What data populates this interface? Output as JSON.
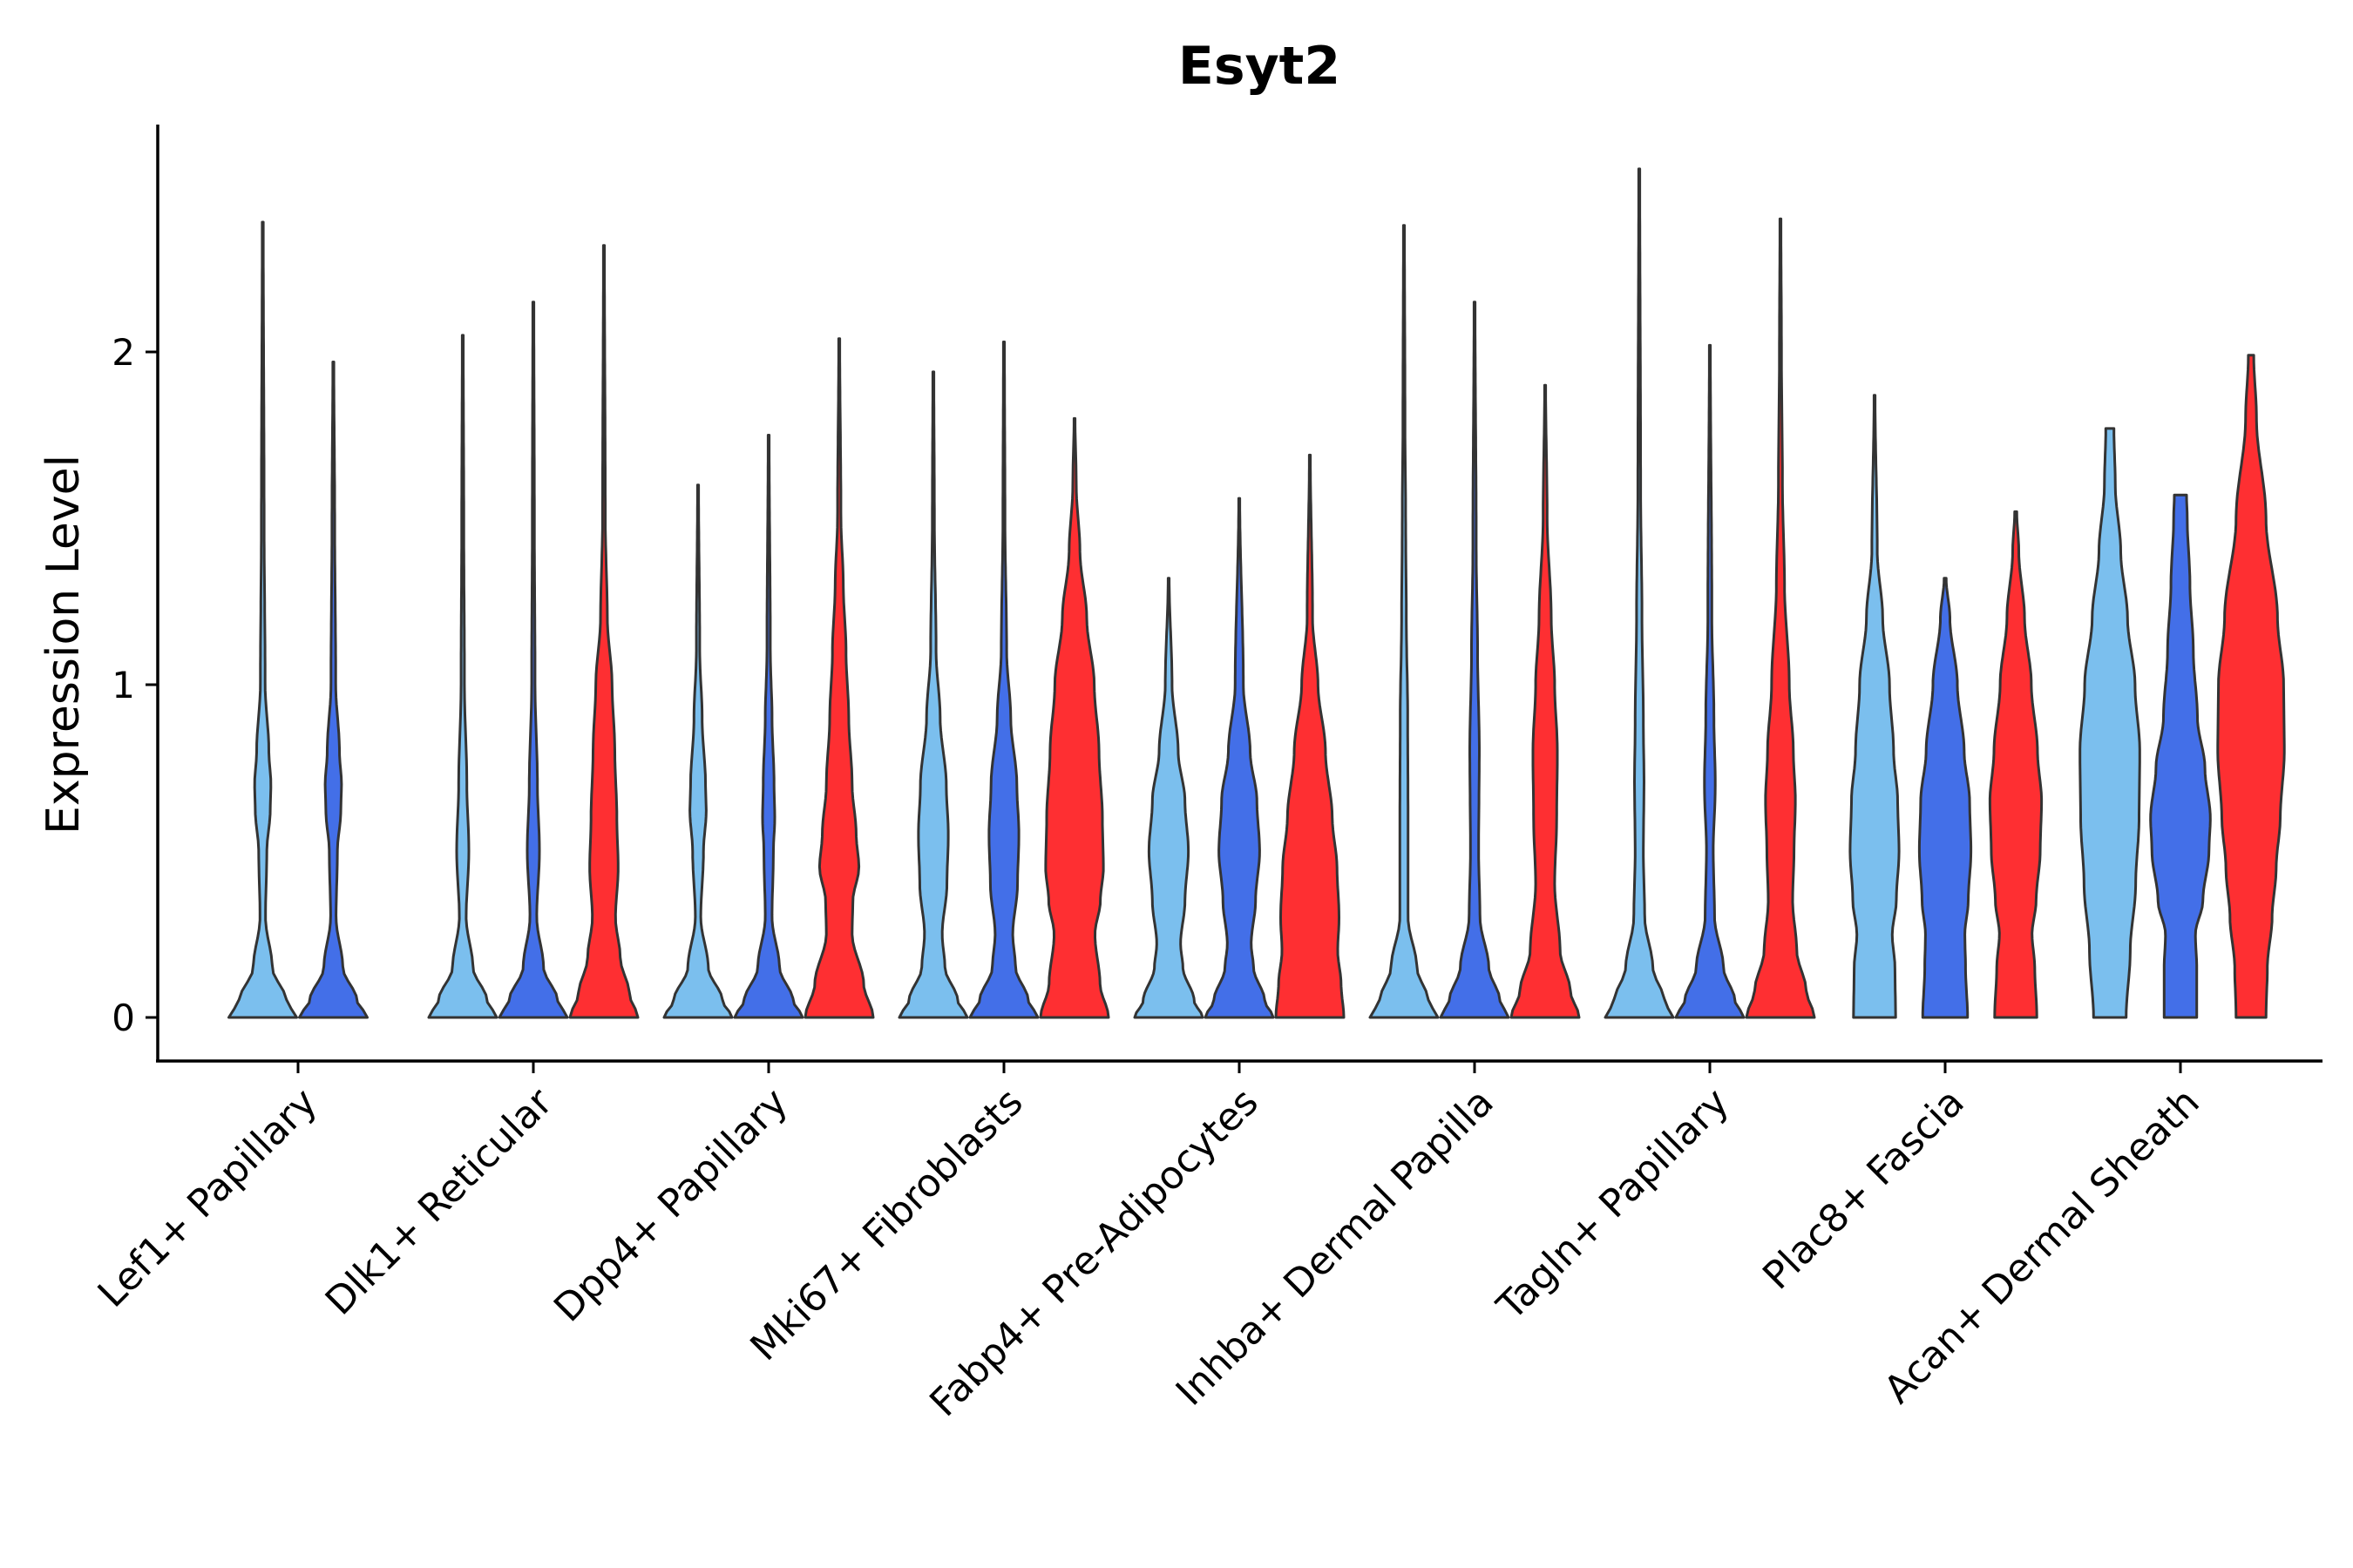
{
  "chart_data": {
    "type": "violin",
    "title": "Esyt2",
    "ylabel": "Expression Level",
    "xlabel": "",
    "ylim": [
      -0.13,
      2.7
    ],
    "yticks": [
      0,
      1,
      2
    ],
    "grid": false,
    "legend": "none",
    "categories": [
      "Lef1+ Papillary",
      "Dlk1+ Reticular",
      "Dpp4+ Papillary",
      "Mki67+ Fibroblasts",
      "Fabp4+ Pre-Adipocytes",
      "Inhba+ Dermal Papilla",
      "Tagln+ Papillary",
      "Plac8+ Fascia",
      "Acan+ Dermal Sheath"
    ],
    "groups": [
      {
        "color": "#7bbfee"
      },
      {
        "color": "#436fe8"
      },
      {
        "color": "#fe2f32"
      }
    ],
    "violins": [
      {
        "category": 0,
        "group": 0,
        "max": 2.39,
        "density": [
          [
            0,
            1.0
          ],
          [
            0.05,
            0.7
          ],
          [
            0.15,
            0.28
          ],
          [
            0.3,
            0.08
          ],
          [
            0.5,
            0.12
          ],
          [
            0.62,
            0.22
          ],
          [
            0.7,
            0.24
          ],
          [
            0.8,
            0.18
          ],
          [
            1.0,
            0.07
          ],
          [
            1.5,
            0.04
          ],
          [
            2.39,
            0.015
          ]
        ]
      },
      {
        "category": 0,
        "group": 1,
        "max": 1.97,
        "density": [
          [
            0,
            1.0
          ],
          [
            0.05,
            0.7
          ],
          [
            0.15,
            0.28
          ],
          [
            0.3,
            0.08
          ],
          [
            0.5,
            0.12
          ],
          [
            0.62,
            0.22
          ],
          [
            0.7,
            0.24
          ],
          [
            0.8,
            0.18
          ],
          [
            1.0,
            0.07
          ],
          [
            1.5,
            0.04
          ],
          [
            1.97,
            0.015
          ]
        ]
      },
      {
        "category": 1,
        "group": 0,
        "max": 2.05,
        "density": [
          [
            0,
            1.0
          ],
          [
            0.05,
            0.72
          ],
          [
            0.15,
            0.3
          ],
          [
            0.3,
            0.1
          ],
          [
            0.5,
            0.18
          ],
          [
            0.7,
            0.12
          ],
          [
            1.0,
            0.05
          ],
          [
            1.5,
            0.03
          ],
          [
            2.05,
            0.015
          ]
        ]
      },
      {
        "category": 1,
        "group": 1,
        "max": 2.15,
        "density": [
          [
            0,
            1.0
          ],
          [
            0.05,
            0.72
          ],
          [
            0.15,
            0.3
          ],
          [
            0.3,
            0.1
          ],
          [
            0.5,
            0.18
          ],
          [
            0.7,
            0.12
          ],
          [
            1.0,
            0.05
          ],
          [
            1.5,
            0.03
          ],
          [
            2.15,
            0.015
          ]
        ]
      },
      {
        "category": 1,
        "group": 2,
        "max": 2.32,
        "density": [
          [
            0,
            1.0
          ],
          [
            0.07,
            0.75
          ],
          [
            0.18,
            0.48
          ],
          [
            0.3,
            0.34
          ],
          [
            0.45,
            0.42
          ],
          [
            0.6,
            0.38
          ],
          [
            0.8,
            0.32
          ],
          [
            1.0,
            0.24
          ],
          [
            1.2,
            0.1
          ],
          [
            1.5,
            0.04
          ],
          [
            2.32,
            0.015
          ]
        ]
      },
      {
        "category": 2,
        "group": 0,
        "max": 1.6,
        "density": [
          [
            0,
            1.0
          ],
          [
            0.05,
            0.72
          ],
          [
            0.15,
            0.3
          ],
          [
            0.3,
            0.08
          ],
          [
            0.5,
            0.16
          ],
          [
            0.62,
            0.24
          ],
          [
            0.7,
            0.22
          ],
          [
            0.9,
            0.12
          ],
          [
            1.1,
            0.05
          ],
          [
            1.6,
            0.015
          ]
        ]
      },
      {
        "category": 2,
        "group": 1,
        "max": 1.75,
        "density": [
          [
            0,
            1.0
          ],
          [
            0.05,
            0.72
          ],
          [
            0.15,
            0.32
          ],
          [
            0.3,
            0.1
          ],
          [
            0.5,
            0.14
          ],
          [
            0.6,
            0.18
          ],
          [
            0.7,
            0.16
          ],
          [
            0.9,
            0.1
          ],
          [
            1.1,
            0.05
          ],
          [
            1.75,
            0.015
          ]
        ]
      },
      {
        "category": 2,
        "group": 2,
        "max": 2.04,
        "density": [
          [
            0,
            1.0
          ],
          [
            0.1,
            0.72
          ],
          [
            0.25,
            0.38
          ],
          [
            0.35,
            0.4
          ],
          [
            0.45,
            0.58
          ],
          [
            0.55,
            0.5
          ],
          [
            0.7,
            0.38
          ],
          [
            0.9,
            0.28
          ],
          [
            1.1,
            0.2
          ],
          [
            1.3,
            0.12
          ],
          [
            1.5,
            0.05
          ],
          [
            2.04,
            0.015
          ]
        ]
      },
      {
        "category": 3,
        "group": 0,
        "max": 1.94,
        "density": [
          [
            0,
            1.0
          ],
          [
            0.05,
            0.72
          ],
          [
            0.15,
            0.34
          ],
          [
            0.25,
            0.26
          ],
          [
            0.4,
            0.4
          ],
          [
            0.55,
            0.44
          ],
          [
            0.7,
            0.38
          ],
          [
            0.9,
            0.2
          ],
          [
            1.1,
            0.08
          ],
          [
            1.5,
            0.03
          ],
          [
            1.94,
            0.015
          ]
        ]
      },
      {
        "category": 3,
        "group": 1,
        "max": 2.03,
        "density": [
          [
            0,
            1.0
          ],
          [
            0.05,
            0.72
          ],
          [
            0.15,
            0.34
          ],
          [
            0.25,
            0.26
          ],
          [
            0.4,
            0.4
          ],
          [
            0.55,
            0.44
          ],
          [
            0.7,
            0.38
          ],
          [
            0.9,
            0.2
          ],
          [
            1.1,
            0.08
          ],
          [
            1.5,
            0.03
          ],
          [
            2.03,
            0.015
          ]
        ]
      },
      {
        "category": 3,
        "group": 2,
        "max": 1.8,
        "density": [
          [
            0,
            1.0
          ],
          [
            0.1,
            0.75
          ],
          [
            0.25,
            0.6
          ],
          [
            0.35,
            0.76
          ],
          [
            0.45,
            0.85
          ],
          [
            0.6,
            0.82
          ],
          [
            0.8,
            0.72
          ],
          [
            1.0,
            0.58
          ],
          [
            1.2,
            0.36
          ],
          [
            1.4,
            0.16
          ],
          [
            1.6,
            0.05
          ],
          [
            1.8,
            0.015
          ]
        ]
      },
      {
        "category": 4,
        "group": 0,
        "max": 1.32,
        "density": [
          [
            0,
            1.0
          ],
          [
            0.05,
            0.75
          ],
          [
            0.15,
            0.42
          ],
          [
            0.22,
            0.35
          ],
          [
            0.35,
            0.48
          ],
          [
            0.5,
            0.58
          ],
          [
            0.65,
            0.48
          ],
          [
            0.8,
            0.28
          ],
          [
            1.0,
            0.1
          ],
          [
            1.32,
            0.015
          ]
        ]
      },
      {
        "category": 4,
        "group": 1,
        "max": 1.56,
        "density": [
          [
            0,
            1.0
          ],
          [
            0.05,
            0.75
          ],
          [
            0.15,
            0.42
          ],
          [
            0.22,
            0.35
          ],
          [
            0.35,
            0.48
          ],
          [
            0.5,
            0.6
          ],
          [
            0.65,
            0.52
          ],
          [
            0.8,
            0.32
          ],
          [
            1.0,
            0.12
          ],
          [
            1.56,
            0.015
          ]
        ]
      },
      {
        "category": 4,
        "group": 2,
        "max": 1.69,
        "density": [
          [
            0,
            1.0
          ],
          [
            0.1,
            0.92
          ],
          [
            0.2,
            0.82
          ],
          [
            0.3,
            0.86
          ],
          [
            0.45,
            0.8
          ],
          [
            0.6,
            0.66
          ],
          [
            0.8,
            0.46
          ],
          [
            1.0,
            0.24
          ],
          [
            1.2,
            0.08
          ],
          [
            1.69,
            0.015
          ]
        ]
      },
      {
        "category": 5,
        "group": 0,
        "max": 2.38,
        "density": [
          [
            0,
            1.0
          ],
          [
            0.05,
            0.72
          ],
          [
            0.15,
            0.38
          ],
          [
            0.3,
            0.12
          ],
          [
            0.6,
            0.12
          ],
          [
            0.9,
            0.11
          ],
          [
            1.2,
            0.07
          ],
          [
            1.5,
            0.05
          ],
          [
            1.8,
            0.03
          ],
          [
            2.38,
            0.015
          ]
        ]
      },
      {
        "category": 5,
        "group": 1,
        "max": 2.15,
        "density": [
          [
            0,
            1.0
          ],
          [
            0.05,
            0.75
          ],
          [
            0.15,
            0.42
          ],
          [
            0.3,
            0.16
          ],
          [
            0.5,
            0.12
          ],
          [
            0.8,
            0.14
          ],
          [
            1.1,
            0.09
          ],
          [
            1.4,
            0.05
          ],
          [
            2.15,
            0.015
          ]
        ]
      },
      {
        "category": 5,
        "group": 2,
        "max": 1.9,
        "density": [
          [
            0,
            1.0
          ],
          [
            0.08,
            0.74
          ],
          [
            0.2,
            0.44
          ],
          [
            0.4,
            0.28
          ],
          [
            0.6,
            0.34
          ],
          [
            0.8,
            0.36
          ],
          [
            1.0,
            0.28
          ],
          [
            1.2,
            0.18
          ],
          [
            1.5,
            0.06
          ],
          [
            1.9,
            0.015
          ]
        ]
      },
      {
        "category": 6,
        "group": 0,
        "max": 2.55,
        "density": [
          [
            0,
            1.0
          ],
          [
            0.05,
            0.74
          ],
          [
            0.15,
            0.4
          ],
          [
            0.3,
            0.16
          ],
          [
            0.5,
            0.12
          ],
          [
            0.7,
            0.14
          ],
          [
            0.9,
            0.12
          ],
          [
            1.2,
            0.08
          ],
          [
            1.6,
            0.04
          ],
          [
            2.55,
            0.015
          ]
        ]
      },
      {
        "category": 6,
        "group": 1,
        "max": 2.02,
        "density": [
          [
            0,
            1.0
          ],
          [
            0.05,
            0.74
          ],
          [
            0.15,
            0.4
          ],
          [
            0.3,
            0.14
          ],
          [
            0.5,
            0.1
          ],
          [
            0.7,
            0.16
          ],
          [
            0.9,
            0.12
          ],
          [
            1.2,
            0.06
          ],
          [
            2.02,
            0.015
          ]
        ]
      },
      {
        "category": 6,
        "group": 2,
        "max": 2.4,
        "density": [
          [
            0,
            1.0
          ],
          [
            0.08,
            0.76
          ],
          [
            0.2,
            0.48
          ],
          [
            0.35,
            0.36
          ],
          [
            0.5,
            0.4
          ],
          [
            0.65,
            0.44
          ],
          [
            0.8,
            0.38
          ],
          [
            1.0,
            0.26
          ],
          [
            1.3,
            0.12
          ],
          [
            1.6,
            0.06
          ],
          [
            2.0,
            0.03
          ],
          [
            2.4,
            0.015
          ]
        ]
      },
      {
        "category": 7,
        "group": 0,
        "max": 1.87,
        "density": [
          [
            0,
            0.62
          ],
          [
            0.15,
            0.6
          ],
          [
            0.25,
            0.52
          ],
          [
            0.35,
            0.64
          ],
          [
            0.5,
            0.72
          ],
          [
            0.65,
            0.68
          ],
          [
            0.8,
            0.56
          ],
          [
            1.0,
            0.44
          ],
          [
            1.2,
            0.24
          ],
          [
            1.4,
            0.08
          ],
          [
            1.87,
            0.015
          ]
        ]
      },
      {
        "category": 7,
        "group": 1,
        "max": 1.32,
        "density": [
          [
            0,
            0.66
          ],
          [
            0.15,
            0.6
          ],
          [
            0.25,
            0.58
          ],
          [
            0.35,
            0.68
          ],
          [
            0.5,
            0.76
          ],
          [
            0.65,
            0.72
          ],
          [
            0.8,
            0.56
          ],
          [
            1.0,
            0.36
          ],
          [
            1.2,
            0.14
          ],
          [
            1.32,
            0.03
          ]
        ]
      },
      {
        "category": 7,
        "group": 2,
        "max": 1.52,
        "density": [
          [
            0,
            0.62
          ],
          [
            0.15,
            0.56
          ],
          [
            0.25,
            0.48
          ],
          [
            0.35,
            0.6
          ],
          [
            0.5,
            0.72
          ],
          [
            0.65,
            0.76
          ],
          [
            0.8,
            0.64
          ],
          [
            1.0,
            0.46
          ],
          [
            1.2,
            0.26
          ],
          [
            1.4,
            0.09
          ],
          [
            1.52,
            0.03
          ]
        ]
      },
      {
        "category": 8,
        "group": 0,
        "max": 1.77,
        "density": [
          [
            0,
            0.48
          ],
          [
            0.2,
            0.6
          ],
          [
            0.4,
            0.76
          ],
          [
            0.6,
            0.86
          ],
          [
            0.8,
            0.88
          ],
          [
            1.0,
            0.74
          ],
          [
            1.2,
            0.52
          ],
          [
            1.4,
            0.32
          ],
          [
            1.6,
            0.16
          ],
          [
            1.77,
            0.12
          ]
        ]
      },
      {
        "category": 8,
        "group": 1,
        "max": 1.57,
        "density": [
          [
            0,
            0.48
          ],
          [
            0.15,
            0.48
          ],
          [
            0.25,
            0.44
          ],
          [
            0.35,
            0.66
          ],
          [
            0.5,
            0.84
          ],
          [
            0.6,
            0.88
          ],
          [
            0.75,
            0.72
          ],
          [
            0.9,
            0.5
          ],
          [
            1.1,
            0.38
          ],
          [
            1.3,
            0.28
          ],
          [
            1.5,
            0.2
          ],
          [
            1.57,
            0.18
          ]
        ]
      },
      {
        "category": 8,
        "group": 2,
        "max": 1.99,
        "density": [
          [
            0,
            0.44
          ],
          [
            0.15,
            0.48
          ],
          [
            0.3,
            0.62
          ],
          [
            0.45,
            0.74
          ],
          [
            0.6,
            0.86
          ],
          [
            0.8,
            0.98
          ],
          [
            1.0,
            0.96
          ],
          [
            1.2,
            0.78
          ],
          [
            1.5,
            0.44
          ],
          [
            1.8,
            0.16
          ],
          [
            1.99,
            0.08
          ]
        ]
      }
    ]
  }
}
